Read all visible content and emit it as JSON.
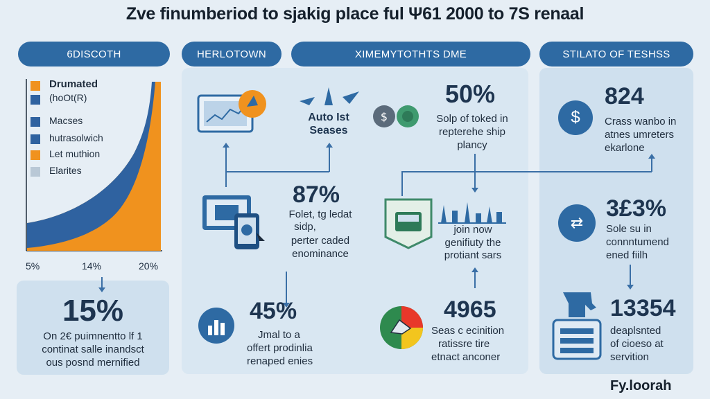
{
  "title": "Zve finumberiod to sjakig place ful Ψ61 2000 to 7S renaal",
  "headers": {
    "h1": "6DISCOTH",
    "h2": "HERLOTOWN",
    "h3": "XIMEMYTOTHTS DME",
    "h4": "STILATO OF TESHSS"
  },
  "legend": {
    "item1": "Drumated",
    "item1b": "(hoOt(R)",
    "item2": "Macses",
    "item3": "hutrasolwich",
    "item4": "Let muthion",
    "item5": "Elarites"
  },
  "axis": {
    "t1": "5%",
    "t2": "14%",
    "t3": "20%"
  },
  "stat_15": {
    "value": "15%",
    "line1": "On 2€ puimnentto lf 1",
    "line2": "continat salle inandsct",
    "line3": "ous posnd mernified"
  },
  "auto": {
    "line1": "Auto Ist",
    "line2": "Seases"
  },
  "stat_50": {
    "value": "50%",
    "line1": "Solp of toked in",
    "line2": "repterehe ship",
    "line3": "plancy"
  },
  "stat_824": {
    "value": "824",
    "line1": "Crass wanbo in",
    "line2": "atnes umreters",
    "line3": "ekarlone"
  },
  "stat_87": {
    "value": "87%",
    "line1": "Folet, tg ledat",
    "line2": "sidp,",
    "line3": "perter caded",
    "line4": "enominance"
  },
  "join": {
    "line1": "join now",
    "line2": "genifiuty the",
    "line3": "protiant sars"
  },
  "stat_313": {
    "value": "3£3%",
    "line1": "Sole su in",
    "line2": "connntumend",
    "line3": "ened fiilh"
  },
  "stat_45": {
    "value": "45%",
    "line1": "Jmal to a",
    "line2": "offert prodinlia",
    "line3": "renaped enies"
  },
  "stat_4965": {
    "value": "4965",
    "line1": "Seas c ecinition",
    "line2": "ratissre tire",
    "line3": "etnact anconer"
  },
  "stat_13354": {
    "value": "13354",
    "line1": "deaplsnted",
    "line2": "of cioeso at",
    "line3": "servition"
  },
  "footer": "Fy.loorah",
  "colors": {
    "blue_dark": "#2e6aa3",
    "orange": "#f0921e",
    "curve_blue": "#2f62a0",
    "panel": "#cfe0ee"
  }
}
